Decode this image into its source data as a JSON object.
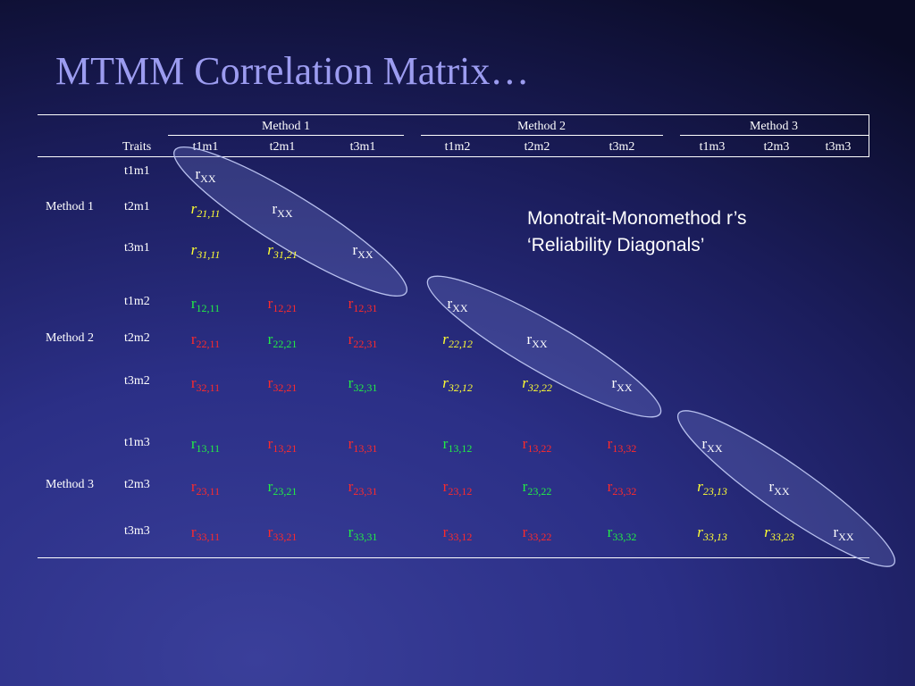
{
  "title": "MTMM Correlation Matrix…",
  "header": {
    "methods": [
      "Method 1",
      "Method 2",
      "Method 3"
    ],
    "traits_label": "Traits",
    "columns": [
      "t1m1",
      "t2m1",
      "t3m1",
      "t1m2",
      "t2m2",
      "t3m2",
      "t1m3",
      "t2m3",
      "t3m3"
    ]
  },
  "row_groups": [
    {
      "label": "Method 1",
      "rows": [
        "t1m1",
        "t2m1",
        "t3m1"
      ]
    },
    {
      "label": "Method 2",
      "rows": [
        "t1m2",
        "t2m2",
        "t3m2"
      ]
    },
    {
      "label": "Method 3",
      "rows": [
        "t1m3",
        "t2m3",
        "t3m3"
      ]
    }
  ],
  "colors": {
    "white": "#ffffff",
    "red": "#ff2a2a",
    "green": "#22ee44",
    "yellow": "#ffff33"
  },
  "cells": [
    {
      "row": 0,
      "col": 0,
      "r": "r",
      "sub": "XX",
      "color": "white",
      "italic": false
    },
    {
      "row": 1,
      "col": 0,
      "r": "r",
      "sub": "21,11",
      "color": "yellow",
      "italic": true
    },
    {
      "row": 1,
      "col": 1,
      "r": "r",
      "sub": "XX",
      "color": "white",
      "italic": false
    },
    {
      "row": 2,
      "col": 0,
      "r": "r",
      "sub": "31,11",
      "color": "yellow",
      "italic": true
    },
    {
      "row": 2,
      "col": 1,
      "r": "r",
      "sub": "31,21",
      "color": "yellow",
      "italic": true
    },
    {
      "row": 2,
      "col": 2,
      "r": "r",
      "sub": "XX",
      "color": "white",
      "italic": false
    },
    {
      "row": 3,
      "col": 0,
      "r": "r",
      "sub": "12,11",
      "color": "green",
      "italic": false
    },
    {
      "row": 3,
      "col": 1,
      "r": "r",
      "sub": "12,21",
      "color": "red",
      "italic": false
    },
    {
      "row": 3,
      "col": 2,
      "r": "r",
      "sub": "12,31",
      "color": "red",
      "italic": false
    },
    {
      "row": 3,
      "col": 3,
      "r": "r",
      "sub": "XX",
      "color": "white",
      "italic": false
    },
    {
      "row": 4,
      "col": 0,
      "r": "r",
      "sub": "22,11",
      "color": "red",
      "italic": false
    },
    {
      "row": 4,
      "col": 1,
      "r": "r",
      "sub": "22,21",
      "color": "green",
      "italic": false
    },
    {
      "row": 4,
      "col": 2,
      "r": "r",
      "sub": "22,31",
      "color": "red",
      "italic": false
    },
    {
      "row": 4,
      "col": 3,
      "r": "r",
      "sub": "22,12",
      "color": "yellow",
      "italic": true
    },
    {
      "row": 4,
      "col": 4,
      "r": "r",
      "sub": "XX",
      "color": "white",
      "italic": false
    },
    {
      "row": 5,
      "col": 0,
      "r": "r",
      "sub": "32,11",
      "color": "red",
      "italic": false
    },
    {
      "row": 5,
      "col": 1,
      "r": "r",
      "sub": "32,21",
      "color": "red",
      "italic": false
    },
    {
      "row": 5,
      "col": 2,
      "r": "r",
      "sub": "32,31",
      "color": "green",
      "italic": false
    },
    {
      "row": 5,
      "col": 3,
      "r": "r",
      "sub": "32,12",
      "color": "yellow",
      "italic": true
    },
    {
      "row": 5,
      "col": 4,
      "r": "r",
      "sub": "32,22",
      "color": "yellow",
      "italic": true
    },
    {
      "row": 5,
      "col": 5,
      "r": "r",
      "sub": "XX",
      "color": "white",
      "italic": false
    },
    {
      "row": 6,
      "col": 0,
      "r": "r",
      "sub": "13,11",
      "color": "green",
      "italic": false
    },
    {
      "row": 6,
      "col": 1,
      "r": "r",
      "sub": "13,21",
      "color": "red",
      "italic": false
    },
    {
      "row": 6,
      "col": 2,
      "r": "r",
      "sub": "13,31",
      "color": "red",
      "italic": false
    },
    {
      "row": 6,
      "col": 3,
      "r": "r",
      "sub": "13,12",
      "color": "green",
      "italic": false
    },
    {
      "row": 6,
      "col": 4,
      "r": "r",
      "sub": "13,22",
      "color": "red",
      "italic": false
    },
    {
      "row": 6,
      "col": 5,
      "r": "r",
      "sub": "13,32",
      "color": "red",
      "italic": false
    },
    {
      "row": 6,
      "col": 6,
      "r": "r",
      "sub": "XX",
      "color": "white",
      "italic": false
    },
    {
      "row": 7,
      "col": 0,
      "r": "r",
      "sub": "23,11",
      "color": "red",
      "italic": false
    },
    {
      "row": 7,
      "col": 1,
      "r": "r",
      "sub": "23,21",
      "color": "green",
      "italic": false
    },
    {
      "row": 7,
      "col": 2,
      "r": "r",
      "sub": "23,31",
      "color": "red",
      "italic": false
    },
    {
      "row": 7,
      "col": 3,
      "r": "r",
      "sub": "23,12",
      "color": "red",
      "italic": false
    },
    {
      "row": 7,
      "col": 4,
      "r": "r",
      "sub": "23,22",
      "color": "green",
      "italic": false
    },
    {
      "row": 7,
      "col": 5,
      "r": "r",
      "sub": "23,32",
      "color": "red",
      "italic": false
    },
    {
      "row": 7,
      "col": 6,
      "r": "r",
      "sub": "23,13",
      "color": "yellow",
      "italic": true
    },
    {
      "row": 7,
      "col": 7,
      "r": "r",
      "sub": "XX",
      "color": "white",
      "italic": false
    },
    {
      "row": 8,
      "col": 0,
      "r": "r",
      "sub": "33,11",
      "color": "red",
      "italic": false
    },
    {
      "row": 8,
      "col": 1,
      "r": "r",
      "sub": "33,21",
      "color": "red",
      "italic": false
    },
    {
      "row": 8,
      "col": 2,
      "r": "r",
      "sub": "33,31",
      "color": "green",
      "italic": false
    },
    {
      "row": 8,
      "col": 3,
      "r": "r",
      "sub": "33,12",
      "color": "red",
      "italic": false
    },
    {
      "row": 8,
      "col": 4,
      "r": "r",
      "sub": "33,22",
      "color": "red",
      "italic": false
    },
    {
      "row": 8,
      "col": 5,
      "r": "r",
      "sub": "33,32",
      "color": "green",
      "italic": false
    },
    {
      "row": 8,
      "col": 6,
      "r": "r",
      "sub": "33,13",
      "color": "yellow",
      "italic": true
    },
    {
      "row": 8,
      "col": 7,
      "r": "r",
      "sub": "33,23",
      "color": "yellow",
      "italic": true
    },
    {
      "row": 8,
      "col": 8,
      "r": "r",
      "sub": "XX",
      "color": "white",
      "italic": false
    }
  ],
  "callout": {
    "line1": "Monotrait-Monomethod r’s",
    "line2": "‘Reliability Diagonals’"
  }
}
